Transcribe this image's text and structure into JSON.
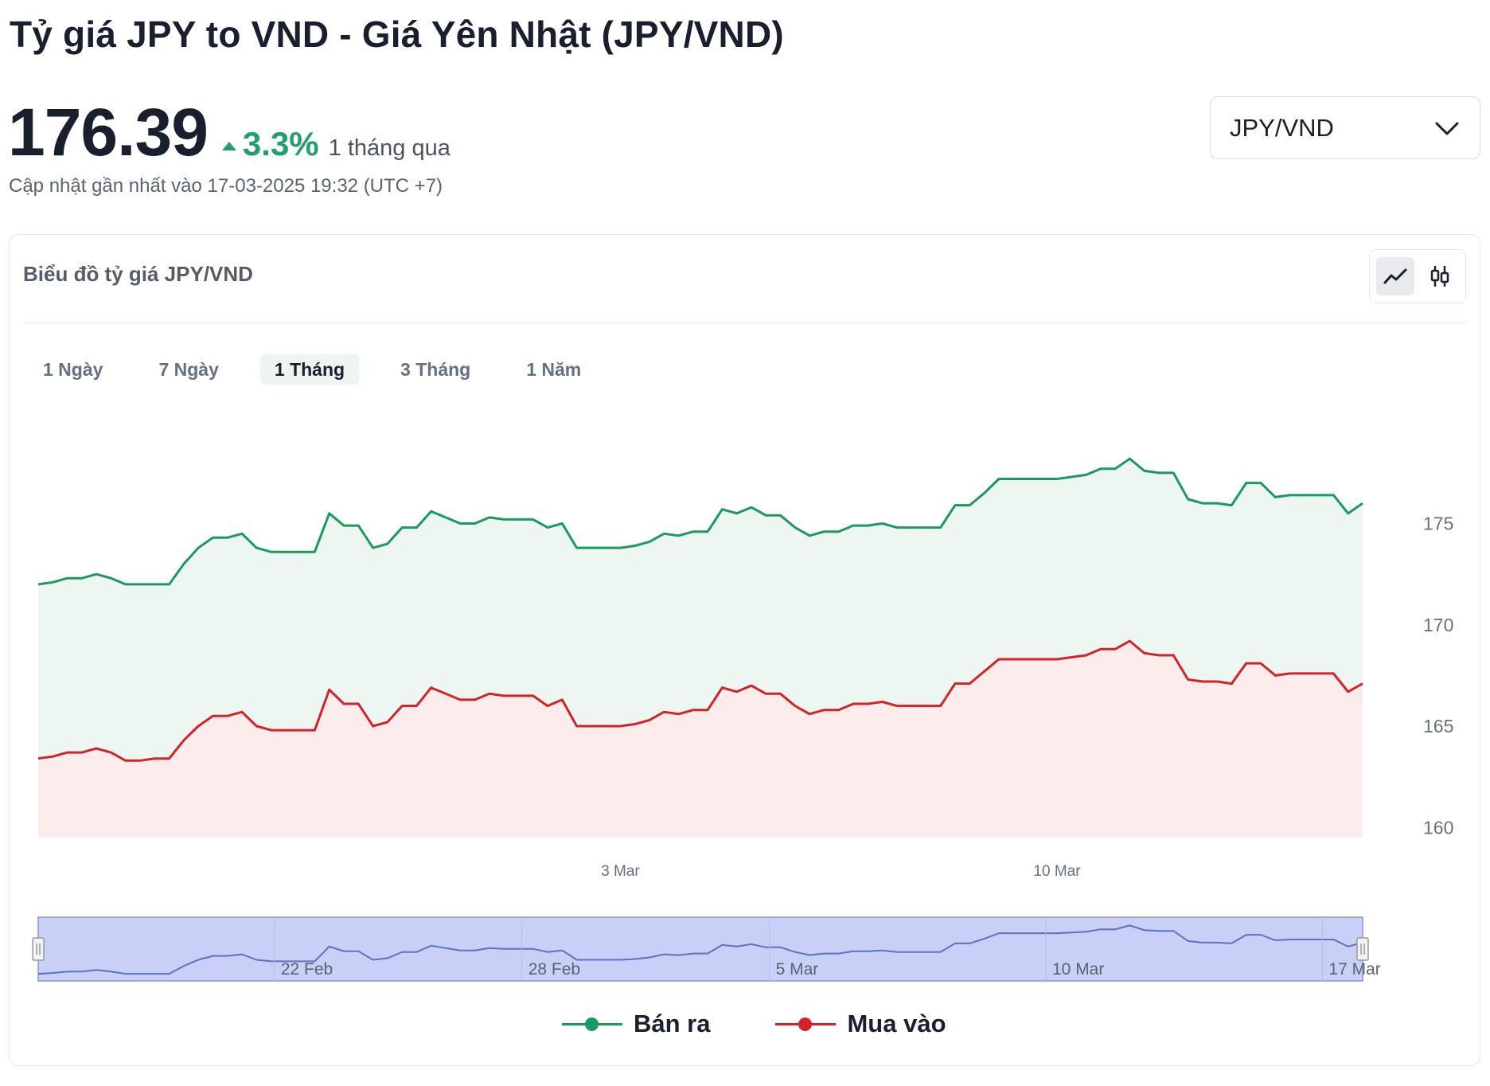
{
  "header": {
    "title": "Tỷ giá JPY to VND - Giá Yên Nhật (JPY/VND)",
    "price": "176.39",
    "change_pct": "3.3%",
    "change_period": "1 tháng qua",
    "updated": "Cập nhật gần nhất vào 17-03-2025 19:32 (UTC +7)"
  },
  "pair_select": {
    "value": "JPY/VND"
  },
  "card": {
    "title": "Biểu đồ tỷ giá JPY/VND",
    "toggle": {
      "line_icon": "line-chart-icon",
      "candle_icon": "candlestick-icon"
    }
  },
  "ranges": [
    {
      "label": "1 Ngày",
      "active": false
    },
    {
      "label": "7 Ngày",
      "active": false
    },
    {
      "label": "1 Tháng",
      "active": true
    },
    {
      "label": "3 Tháng",
      "active": false
    },
    {
      "label": "1 Năm",
      "active": false
    }
  ],
  "colors": {
    "sell": "#1a9a5f",
    "buy": "#d3232a",
    "sell_fill": "#eef6f1",
    "buy_fill": "#fcecec",
    "navigator": "#c9d0f7"
  },
  "legend": {
    "sell": "Bán ra",
    "buy": "Mua vào"
  },
  "chart_data": {
    "type": "area",
    "y_ticks": [
      160,
      165,
      170,
      175
    ],
    "ylim": [
      159.5,
      178.5
    ],
    "x_ticks": [
      {
        "label": "3 Mar",
        "index": 40
      },
      {
        "label": "10 Mar",
        "index": 70
      }
    ],
    "navigator_ticks": [
      {
        "label": "22 Feb",
        "index": 17
      },
      {
        "label": "28 Feb",
        "index": 34
      },
      {
        "label": "5 Mar",
        "index": 51
      },
      {
        "label": "10 Mar",
        "index": 70
      },
      {
        "label": "17 Mar",
        "index": 89
      }
    ],
    "series": [
      {
        "name": "Bán ra",
        "values": [
          172.0,
          172.1,
          172.3,
          172.3,
          172.5,
          172.3,
          172.0,
          172.0,
          172.0,
          172.0,
          173.0,
          173.8,
          174.3,
          174.3,
          174.5,
          173.8,
          173.6,
          173.6,
          173.6,
          173.6,
          175.5,
          174.9,
          174.9,
          173.8,
          174.0,
          174.8,
          174.8,
          175.6,
          175.3,
          175.0,
          175.0,
          175.3,
          175.2,
          175.2,
          175.2,
          174.8,
          175.0,
          173.8,
          173.8,
          173.8,
          173.8,
          173.9,
          174.1,
          174.5,
          174.4,
          174.6,
          174.6,
          175.7,
          175.5,
          175.8,
          175.4,
          175.4,
          174.8,
          174.4,
          174.6,
          174.6,
          174.9,
          174.9,
          175.0,
          174.8,
          174.8,
          174.8,
          174.8,
          175.9,
          175.9,
          176.5,
          177.2,
          177.2,
          177.2,
          177.2,
          177.2,
          177.3,
          177.4,
          177.7,
          177.7,
          178.2,
          177.6,
          177.5,
          177.5,
          176.2,
          176.0,
          176.0,
          175.9,
          177.0,
          177.0,
          176.3,
          176.4,
          176.4,
          176.4,
          176.4,
          175.5,
          176.0
        ],
        "avg": 175.0
      },
      {
        "name": "Mua vào",
        "values": [
          163.4,
          163.5,
          163.7,
          163.7,
          163.9,
          163.7,
          163.3,
          163.3,
          163.4,
          163.4,
          164.3,
          165.0,
          165.5,
          165.5,
          165.7,
          165.0,
          164.8,
          164.8,
          164.8,
          164.8,
          166.8,
          166.1,
          166.1,
          165.0,
          165.2,
          166.0,
          166.0,
          166.9,
          166.6,
          166.3,
          166.3,
          166.6,
          166.5,
          166.5,
          166.5,
          166.0,
          166.3,
          165.0,
          165.0,
          165.0,
          165.0,
          165.1,
          165.3,
          165.7,
          165.6,
          165.8,
          165.8,
          166.9,
          166.7,
          167.0,
          166.6,
          166.6,
          166.0,
          165.6,
          165.8,
          165.8,
          166.1,
          166.1,
          166.2,
          166.0,
          166.0,
          166.0,
          166.0,
          167.1,
          167.1,
          167.7,
          168.3,
          168.3,
          168.3,
          168.3,
          168.3,
          168.4,
          168.5,
          168.8,
          168.8,
          169.2,
          168.6,
          168.5,
          168.5,
          167.3,
          167.2,
          167.2,
          167.1,
          168.1,
          168.1,
          167.5,
          167.6,
          167.6,
          167.6,
          167.6,
          166.7,
          167.1
        ]
      }
    ]
  }
}
